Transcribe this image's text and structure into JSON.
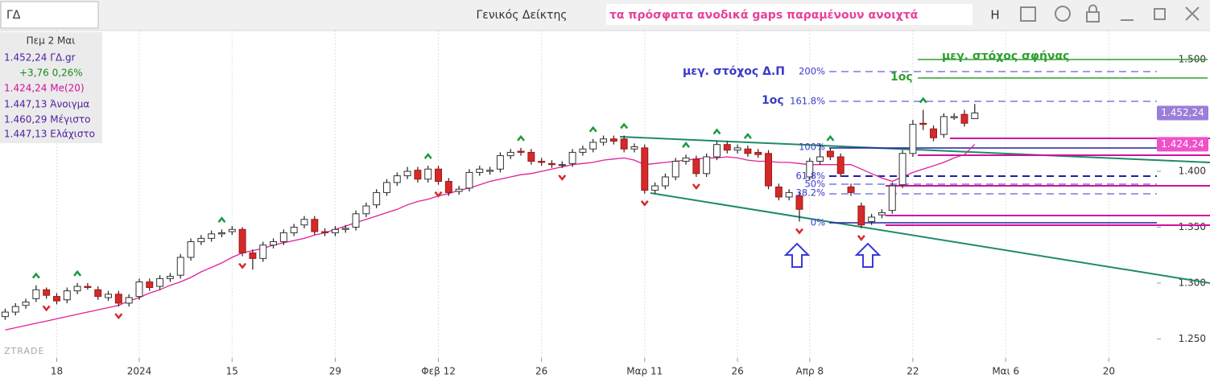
{
  "toolbar": {
    "symbol": "ΓΔ",
    "note": "τα πρόσφατα ανοδικά gaps παραμένουν ανοιχτά",
    "button": "H"
  },
  "info_panel": [
    "Πεμ 2 Μαι",
    "1.452,24 ΓΔ.gr",
    "+3,76 0,26%",
    "1.424,24 Me(20)",
    "1.447,13 Άνοιγμα",
    "1.460,29 Μέγιστο",
    "1.447,13 Ελάχιστο"
  ],
  "watermark": "ZTRADE",
  "chart_data": {
    "type": "candlestick",
    "title": "Γενικός Δείκτης",
    "grid": true,
    "up_color": "#ffffff",
    "down_color": "#d42a2a",
    "xlim": [
      -0.5,
      111.5
    ],
    "xticks": [
      {
        "value": 5,
        "label": "18"
      },
      {
        "value": 13,
        "label": "2024"
      },
      {
        "value": 22,
        "label": "15"
      },
      {
        "value": 32,
        "label": "29"
      },
      {
        "value": 42,
        "label": "Φεβ 12"
      },
      {
        "value": 52,
        "label": "26"
      },
      {
        "value": 62,
        "label": "Μαρ 11"
      },
      {
        "value": 71,
        "label": "26"
      },
      {
        "value": 78,
        "label": "Απρ 8"
      },
      {
        "value": 88,
        "label": "22"
      },
      {
        "value": 97,
        "label": "Μαι 6"
      },
      {
        "value": 107,
        "label": "20"
      }
    ],
    "ylim": [
      1233,
      1526
    ],
    "yticks": [
      {
        "value": 1250,
        "label": "1.250"
      },
      {
        "value": 1300,
        "label": "1.300"
      },
      {
        "value": 1350,
        "label": "1.350"
      },
      {
        "value": 1400,
        "label": "1.400"
      },
      {
        "value": 1500,
        "label": "1.500"
      }
    ],
    "open": [
      1270,
      1274,
      1280,
      1286,
      1294,
      1288,
      1285,
      1293,
      1297,
      1294,
      1287,
      1290,
      1282,
      1288,
      1301,
      1297,
      1304,
      1307,
      1323,
      1337,
      1340,
      1344,
      1346,
      1348,
      1327,
      1322,
      1334,
      1337,
      1345,
      1352,
      1357,
      1346,
      1345,
      1348,
      1350,
      1362,
      1370,
      1381,
      1390,
      1396,
      1401,
      1393,
      1402,
      1391,
      1382,
      1385,
      1399,
      1400,
      1402,
      1414,
      1418,
      1417,
      1409,
      1407,
      1406,
      1407,
      1417,
      1420,
      1426,
      1429,
      1429,
      1420,
      1421,
      1383,
      1387,
      1395,
      1409,
      1411,
      1398,
      1413,
      1424,
      1419,
      1420,
      1417,
      1416,
      1386,
      1377,
      1378,
      1395,
      1409,
      1418,
      1413,
      1386,
      1369,
      1355,
      1361,
      1365,
      1388,
      1416,
      1443,
      1438,
      1433,
      1448,
      1451,
      1447.13
    ],
    "high": [
      1277,
      1282,
      1286,
      1298,
      1296,
      1291,
      1296,
      1300,
      1300,
      1297,
      1293,
      1293,
      1290,
      1304,
      1304,
      1307,
      1309,
      1326,
      1340,
      1343,
      1347,
      1348,
      1351,
      1350,
      1330,
      1337,
      1340,
      1348,
      1353,
      1360,
      1360,
      1349,
      1351,
      1352,
      1365,
      1372,
      1384,
      1393,
      1399,
      1404,
      1404,
      1405,
      1405,
      1394,
      1387,
      1402,
      1405,
      1404,
      1417,
      1420,
      1421,
      1420,
      1412,
      1410,
      1409,
      1420,
      1423,
      1429,
      1432,
      1432,
      1432,
      1425,
      1424,
      1390,
      1398,
      1412,
      1415,
      1414,
      1416,
      1427,
      1427,
      1424,
      1423,
      1420,
      1419,
      1389,
      1384,
      1381,
      1412,
      1425,
      1421,
      1416,
      1389,
      1372,
      1362,
      1366,
      1390,
      1419,
      1446,
      1455,
      1441,
      1452,
      1452,
      1455,
      1460.29
    ],
    "low": [
      1267,
      1271,
      1277,
      1283,
      1286,
      1281,
      1282,
      1290,
      1294,
      1285,
      1284,
      1279,
      1279,
      1285,
      1293,
      1294,
      1301,
      1304,
      1320,
      1334,
      1337,
      1341,
      1343,
      1324,
      1312,
      1319,
      1331,
      1334,
      1342,
      1349,
      1343,
      1342,
      1342,
      1345,
      1347,
      1359,
      1367,
      1378,
      1387,
      1393,
      1390,
      1390,
      1388,
      1378,
      1379,
      1382,
      1396,
      1397,
      1399,
      1411,
      1414,
      1406,
      1405,
      1403,
      1403,
      1404,
      1414,
      1417,
      1423,
      1424,
      1417,
      1417,
      1380,
      1380,
      1384,
      1392,
      1406,
      1395,
      1395,
      1410,
      1416,
      1416,
      1413,
      1412,
      1384,
      1374,
      1374,
      1355,
      1392,
      1406,
      1410,
      1395,
      1378,
      1349,
      1352,
      1358,
      1362,
      1385,
      1413,
      1437,
      1427,
      1430,
      1446,
      1440,
      1447.13
    ],
    "close": [
      1274,
      1279,
      1283,
      1294,
      1289,
      1284,
      1293,
      1297,
      1296,
      1288,
      1290,
      1282,
      1287,
      1301,
      1296,
      1304,
      1306,
      1323,
      1337,
      1340,
      1344,
      1345,
      1348,
      1327,
      1322,
      1334,
      1337,
      1345,
      1350,
      1357,
      1346,
      1345,
      1348,
      1349,
      1362,
      1369,
      1381,
      1390,
      1396,
      1400,
      1393,
      1402,
      1391,
      1381,
      1384,
      1399,
      1402,
      1401,
      1414,
      1417,
      1417,
      1409,
      1408,
      1406,
      1406,
      1417,
      1420,
      1426,
      1429,
      1427,
      1420,
      1422,
      1383,
      1387,
      1395,
      1409,
      1412,
      1398,
      1413,
      1424,
      1419,
      1421,
      1416,
      1415,
      1387,
      1377,
      1381,
      1366,
      1409,
      1413,
      1413,
      1398,
      1381,
      1352,
      1359,
      1363,
      1387,
      1416,
      1442,
      1442,
      1430,
      1449,
      1449,
      1443,
      1452.24
    ],
    "last_label": "1.452,24",
    "last_color": "#9a7ed8",
    "overlays": [
      {
        "color": "#e0209a",
        "last_label": "1.424,24",
        "last_color": "#f050c8",
        "values": [
          1258,
          1260,
          1262,
          1264,
          1266,
          1268,
          1270,
          1272,
          1274,
          1276,
          1278,
          1280,
          1284,
          1287,
          1291,
          1294,
          1298,
          1301,
          1305,
          1310,
          1314,
          1318,
          1323,
          1327,
          1329,
          1331,
          1334,
          1336,
          1338,
          1340,
          1343,
          1345,
          1348,
          1351,
          1354,
          1357,
          1360,
          1363,
          1366,
          1370,
          1373,
          1375,
          1378,
          1380,
          1383,
          1385,
          1388,
          1391,
          1393,
          1395,
          1397,
          1398,
          1400,
          1402,
          1404,
          1406,
          1407,
          1408,
          1410,
          1411,
          1412,
          1410,
          1406,
          1407,
          1408,
          1409,
          1410,
          1411,
          1412,
          1412,
          1413,
          1412,
          1410,
          1409,
          1409,
          1408,
          1408,
          1407,
          1406,
          1406,
          1406,
          1406,
          1406,
          1402,
          1398,
          1394,
          1391,
          1395,
          1399,
          1402,
          1405,
          1408,
          1412,
          1415,
          1424.24
        ]
      }
    ],
    "fib_labels": [
      "200%",
      "161.8%",
      "100%",
      "61.8%",
      "50%",
      "38.2%",
      "0%"
    ],
    "annotations": {
      "target_dp": "μεγ. στόχος Δ.Π",
      "first_blue": "1ος",
      "first_green": "1ος",
      "target_wedge": "μεγ. στόχος σφήνας"
    }
  }
}
